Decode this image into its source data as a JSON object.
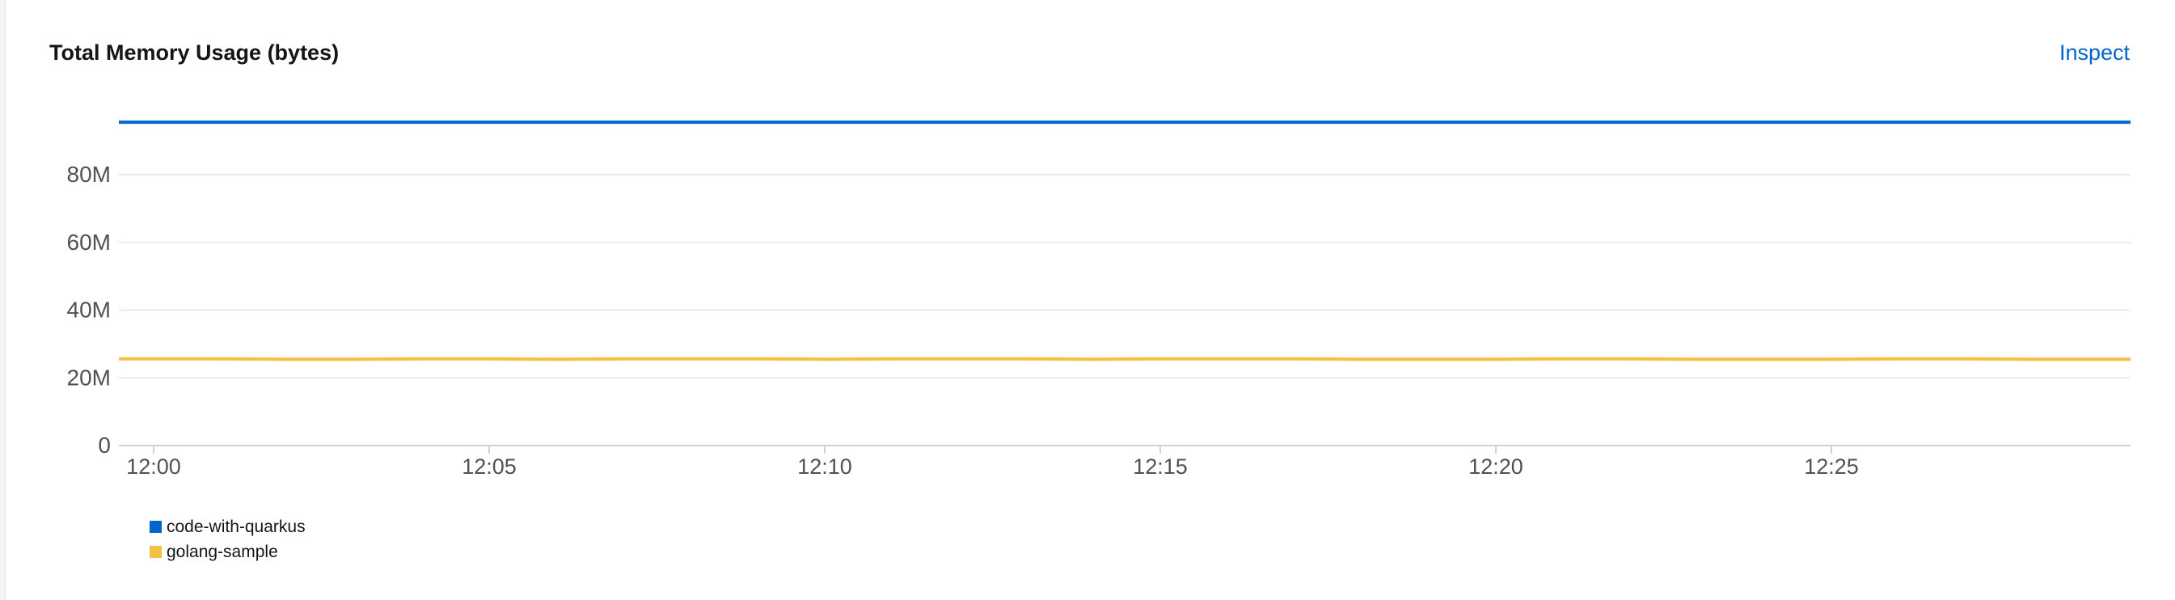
{
  "card": {
    "title": "Total Memory Usage (bytes)",
    "inspect_label": "Inspect"
  },
  "chart_data": {
    "type": "line",
    "title": "Total Memory Usage (bytes)",
    "xlabel": "",
    "ylabel": "",
    "x": [
      "12:00",
      "12:01",
      "12:02",
      "12:03",
      "12:04",
      "12:05",
      "12:06",
      "12:07",
      "12:08",
      "12:09",
      "12:10",
      "12:11",
      "12:12",
      "12:13",
      "12:14",
      "12:15",
      "12:16",
      "12:17",
      "12:18",
      "12:19",
      "12:20",
      "12:21",
      "12:22",
      "12:23",
      "12:24",
      "12:25",
      "12:26",
      "12:27",
      "12:28",
      "12:29"
    ],
    "x_ticks": [
      "12:00",
      "12:05",
      "12:10",
      "12:15",
      "12:20",
      "12:25"
    ],
    "y_ticks": [
      0,
      20000000,
      40000000,
      60000000,
      80000000
    ],
    "y_tick_labels": [
      "0",
      "20M",
      "40M",
      "60M",
      "80M"
    ],
    "ylim": [
      0,
      95000000
    ],
    "grid": true,
    "legend_position": "bottom-left",
    "series": [
      {
        "name": "code-with-quarkus",
        "color": "#0066cc",
        "values": [
          95500000,
          95500000,
          95500000,
          95500000,
          95500000,
          95500000,
          95500000,
          95500000,
          95500000,
          95500000,
          95500000,
          95500000,
          95500000,
          95500000,
          95500000,
          95500000,
          95500000,
          95500000,
          95500000,
          95500000,
          95500000,
          95500000,
          95500000,
          95500000,
          95500000,
          95500000,
          95500000,
          95500000,
          95500000,
          95500000
        ]
      },
      {
        "name": "golang-sample",
        "color": "#f4c145",
        "values": [
          25600000,
          25600000,
          25500000,
          25500000,
          25600000,
          25600000,
          25500000,
          25600000,
          25600000,
          25600000,
          25500000,
          25600000,
          25600000,
          25600000,
          25500000,
          25600000,
          25600000,
          25600000,
          25500000,
          25500000,
          25500000,
          25600000,
          25600000,
          25500000,
          25500000,
          25500000,
          25600000,
          25600000,
          25500000,
          25500000
        ]
      }
    ]
  }
}
